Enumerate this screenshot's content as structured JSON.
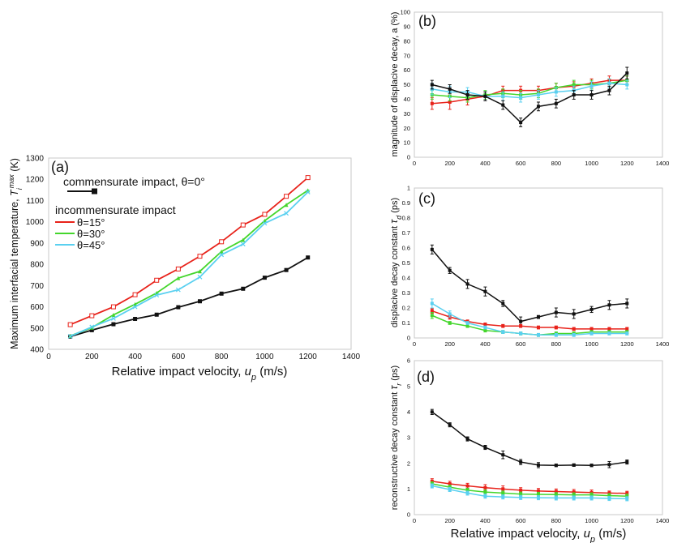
{
  "colors": {
    "black": "#111111",
    "red": "#e8221a",
    "green": "#44d62c",
    "cyan": "#5ad0f0"
  },
  "shared": {
    "x_unit": "(m/s)"
  },
  "chart_data": [
    {
      "id": "a",
      "type": "line",
      "panel_label": "(a)",
      "ylabel": "Maximum interfacial temperature, T_i^max (K)",
      "ylabel_parts": {
        "before": "Maximum interfacial temperature, ",
        "sym": "T",
        "sub": "i",
        "sup": "max",
        "after": " (K)"
      },
      "xlabel": "Relative impact velocity, u_p (m/s)",
      "xlabel_parts": {
        "before": "Relative impact velocity, ",
        "sym": "u",
        "sub": "p",
        "after": "  (m/s)"
      },
      "xlim": [
        0,
        1400
      ],
      "ylim": [
        400,
        1300
      ],
      "xticks": [
        0,
        200,
        400,
        600,
        800,
        1000,
        1200,
        1400
      ],
      "yticks": [
        400,
        500,
        600,
        700,
        800,
        900,
        1000,
        1100,
        1200,
        1300
      ],
      "x": [
        100,
        200,
        300,
        400,
        500,
        600,
        700,
        800,
        900,
        1000,
        1100,
        1200
      ],
      "legend": {
        "header1": "commensurate impact, θ=0°",
        "header2": "incommensurate impact",
        "entries": [
          "θ=15°",
          "θ=30°",
          "θ=45°"
        ]
      },
      "series": [
        {
          "name": "commensurate impact, θ=0°",
          "color": "#111111",
          "marker": "square",
          "values": [
            460,
            490,
            518,
            543,
            563,
            598,
            626,
            662,
            685,
            737,
            773,
            832
          ]
        },
        {
          "name": "θ=15°",
          "color": "#e8221a",
          "marker": "open-square",
          "values": [
            516,
            558,
            600,
            657,
            725,
            778,
            838,
            906,
            985,
            1035,
            1120,
            1208
          ]
        },
        {
          "name": "θ=30°",
          "color": "#44d62c",
          "marker": "triangle",
          "values": [
            463,
            502,
            562,
            612,
            665,
            735,
            767,
            860,
            915,
            1005,
            1080,
            1148
          ]
        },
        {
          "name": "θ=45°",
          "color": "#5ad0f0",
          "marker": "x",
          "values": [
            461,
            505,
            545,
            600,
            655,
            680,
            740,
            845,
            895,
            993,
            1040,
            1140
          ]
        }
      ]
    },
    {
      "id": "b",
      "type": "line",
      "panel_label": "(b)",
      "ylabel": "magnitude of displacive decay, a   (%)",
      "xlim": [
        0,
        1400
      ],
      "ylim": [
        0,
        100
      ],
      "xticks": [
        0,
        200,
        400,
        600,
        800,
        1000,
        1200,
        1400
      ],
      "yticks": [
        0,
        10,
        20,
        30,
        40,
        50,
        60,
        70,
        80,
        90,
        100
      ],
      "x": [
        100,
        200,
        300,
        400,
        500,
        600,
        700,
        800,
        900,
        1000,
        1100,
        1200
      ],
      "series": [
        {
          "name": "θ=15°",
          "color": "#e8221a",
          "values": [
            37,
            38,
            40,
            42,
            46,
            46,
            46,
            48,
            49,
            51,
            53,
            53
          ],
          "errors": [
            4,
            5,
            4,
            3,
            3,
            3,
            3,
            3,
            3,
            3,
            3,
            3
          ]
        },
        {
          "name": "θ=30°",
          "color": "#44d62c",
          "values": [
            43,
            42,
            41,
            43,
            44,
            43,
            44,
            48,
            50,
            50,
            51,
            53
          ],
          "errors": [
            3,
            3,
            3,
            3,
            3,
            3,
            3,
            3,
            3,
            3,
            3,
            3
          ]
        },
        {
          "name": "θ=45°",
          "color": "#5ad0f0",
          "values": [
            47,
            45,
            45,
            42,
            42,
            41,
            43,
            45,
            46,
            49,
            51,
            50
          ],
          "errors": [
            4,
            4,
            3,
            3,
            3,
            3,
            3,
            3,
            3,
            3,
            3,
            3
          ]
        },
        {
          "name": "commensurate impact, θ=0°",
          "color": "#111111",
          "values": [
            50,
            47,
            43,
            42,
            36,
            24,
            35,
            37,
            43,
            43,
            46,
            58
          ],
          "errors": [
            3,
            3,
            3,
            3,
            3,
            3,
            3,
            3,
            3,
            3,
            3,
            4
          ]
        }
      ]
    },
    {
      "id": "c",
      "type": "line",
      "panel_label": "(c)",
      "ylabel": "displacive decay constant τ_d (ps)",
      "ylabel_parts": {
        "before": "displacive decay constant ",
        "sym": "τ",
        "sub": "d",
        "after": "  (ps)"
      },
      "xlim": [
        0,
        1400
      ],
      "ylim": [
        0,
        1
      ],
      "xticks": [
        0,
        200,
        400,
        600,
        800,
        1000,
        1200,
        1400
      ],
      "yticks": [
        0,
        0.1,
        0.2,
        0.3,
        0.4,
        0.5,
        0.6,
        0.7,
        0.8,
        0.9,
        1
      ],
      "ytick_labels": [
        "0",
        "0.1",
        "0.2",
        "0.3",
        "0.4",
        "0.5",
        "0.6",
        "0.7",
        "0.8",
        "0.9",
        "1"
      ],
      "x": [
        100,
        200,
        300,
        400,
        500,
        600,
        700,
        800,
        900,
        1000,
        1100,
        1200
      ],
      "series": [
        {
          "name": "commensurate impact, θ=0°",
          "color": "#111111",
          "values": [
            0.59,
            0.45,
            0.36,
            0.31,
            0.23,
            0.11,
            0.14,
            0.17,
            0.16,
            0.19,
            0.22,
            0.23
          ],
          "errors": [
            0.03,
            0.02,
            0.03,
            0.03,
            0.02,
            0.03,
            0.01,
            0.03,
            0.03,
            0.02,
            0.03,
            0.03
          ]
        },
        {
          "name": "θ=15°",
          "color": "#e8221a",
          "values": [
            0.18,
            0.14,
            0.11,
            0.09,
            0.08,
            0.08,
            0.07,
            0.07,
            0.06,
            0.06,
            0.06,
            0.06
          ],
          "errors": [
            0.015,
            0.015,
            0.01,
            0.01,
            0.01,
            0.01,
            0.01,
            0.01,
            0.01,
            0.01,
            0.01,
            0.01
          ]
        },
        {
          "name": "θ=30°",
          "color": "#44d62c",
          "values": [
            0.15,
            0.1,
            0.08,
            0.05,
            0.04,
            0.03,
            0.02,
            0.03,
            0.03,
            0.04,
            0.04,
            0.04
          ],
          "errors": [
            0.02,
            0.01,
            0.01,
            0.01,
            0.01,
            0.01,
            0.01,
            0.01,
            0.01,
            0.01,
            0.01,
            0.01
          ]
        },
        {
          "name": "θ=45°",
          "color": "#5ad0f0",
          "values": [
            0.23,
            0.16,
            0.1,
            0.07,
            0.04,
            0.03,
            0.02,
            0.02,
            0.02,
            0.03,
            0.03,
            0.03
          ],
          "errors": [
            0.03,
            0.02,
            0.01,
            0.01,
            0.01,
            0.01,
            0.01,
            0.01,
            0.01,
            0.01,
            0.01,
            0.01
          ]
        }
      ]
    },
    {
      "id": "d",
      "type": "line",
      "panel_label": "(d)",
      "ylabel": "reconstructive decay constant τ_r (ps)",
      "ylabel_parts": {
        "before": "reconstructive decay constant ",
        "sym": "τ",
        "sub": "r",
        "after": "  (ps)"
      },
      "xlabel": "Relative impact velocity, u_p (m/s)",
      "xlabel_parts": {
        "before": "Relative impact velocity, ",
        "sym": "u",
        "sub": "p",
        "after": "  (m/s)"
      },
      "xlim": [
        0,
        1400
      ],
      "ylim": [
        0,
        6
      ],
      "xticks": [
        0,
        200,
        400,
        600,
        800,
        1000,
        1200,
        1400
      ],
      "yticks": [
        0,
        1,
        2,
        3,
        4,
        5,
        6
      ],
      "x": [
        100,
        200,
        300,
        400,
        500,
        600,
        700,
        800,
        900,
        1000,
        1100,
        1200
      ],
      "series": [
        {
          "name": "commensurate impact, θ=0°",
          "color": "#111111",
          "values": [
            4.0,
            3.5,
            2.95,
            2.62,
            2.33,
            2.05,
            1.93,
            1.92,
            1.93,
            1.92,
            1.95,
            2.05
          ],
          "errors": [
            0.1,
            0.08,
            0.08,
            0.08,
            0.15,
            0.1,
            0.1,
            0.05,
            0.05,
            0.05,
            0.12,
            0.08
          ]
        },
        {
          "name": "θ=15°",
          "color": "#e8221a",
          "values": [
            1.3,
            1.2,
            1.12,
            1.05,
            1.0,
            0.95,
            0.92,
            0.9,
            0.88,
            0.86,
            0.84,
            0.83
          ],
          "errors": [
            0.1,
            0.1,
            0.1,
            0.12,
            0.12,
            0.1,
            0.1,
            0.1,
            0.1,
            0.1,
            0.08,
            0.08
          ]
        },
        {
          "name": "θ=30°",
          "color": "#44d62c",
          "values": [
            1.2,
            1.07,
            0.95,
            0.88,
            0.84,
            0.8,
            0.79,
            0.78,
            0.77,
            0.77,
            0.74,
            0.72
          ],
          "errors": [
            0.08,
            0.08,
            0.08,
            0.08,
            0.08,
            0.08,
            0.08,
            0.08,
            0.08,
            0.08,
            0.08,
            0.08
          ]
        },
        {
          "name": "θ=45°",
          "color": "#5ad0f0",
          "values": [
            1.12,
            0.98,
            0.84,
            0.72,
            0.69,
            0.67,
            0.66,
            0.65,
            0.65,
            0.65,
            0.63,
            0.62
          ],
          "errors": [
            0.08,
            0.08,
            0.08,
            0.08,
            0.08,
            0.08,
            0.08,
            0.08,
            0.08,
            0.08,
            0.08,
            0.08
          ]
        }
      ]
    }
  ]
}
